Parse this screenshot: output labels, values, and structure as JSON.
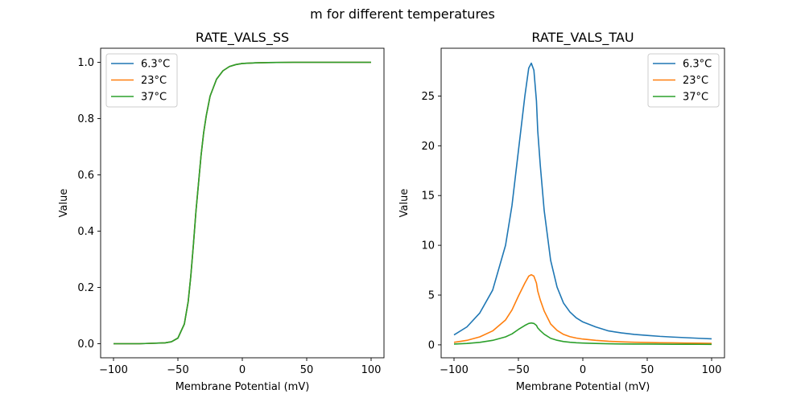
{
  "figure": {
    "title": "m for different temperatures"
  },
  "chart_data": [
    {
      "type": "line",
      "title": "RATE_VALS_SS",
      "xlabel": "Membrane Potential (mV)",
      "ylabel": "Value",
      "xlim": [
        -110,
        110
      ],
      "ylim": [
        -0.05,
        1.05
      ],
      "xticks": [
        -100,
        -50,
        0,
        50,
        100
      ],
      "yticks": [
        0.0,
        0.2,
        0.4,
        0.6,
        0.8,
        1.0
      ],
      "ytick_decimals": 1,
      "grid": false,
      "legend_position": "top-left",
      "series": [
        {
          "name": "6.3°C",
          "color": "#1f77b4",
          "x": [
            -100,
            -80,
            -60,
            -55,
            -50,
            -45,
            -42,
            -40,
            -38,
            -36,
            -35,
            -34,
            -32,
            -30,
            -28,
            -25,
            -20,
            -15,
            -10,
            -5,
            0,
            10,
            20,
            40,
            60,
            80,
            100
          ],
          "y": [
            0.0,
            0.0,
            0.003,
            0.007,
            0.02,
            0.07,
            0.15,
            0.24,
            0.35,
            0.47,
            0.52,
            0.57,
            0.67,
            0.75,
            0.81,
            0.88,
            0.94,
            0.97,
            0.985,
            0.992,
            0.996,
            0.998,
            0.999,
            1.0,
            1.0,
            1.0,
            1.0
          ]
        },
        {
          "name": "23°C",
          "color": "#ff7f0e",
          "x": [
            -100,
            -80,
            -60,
            -55,
            -50,
            -45,
            -42,
            -40,
            -38,
            -36,
            -35,
            -34,
            -32,
            -30,
            -28,
            -25,
            -20,
            -15,
            -10,
            -5,
            0,
            10,
            20,
            40,
            60,
            80,
            100
          ],
          "y": [
            0.0,
            0.0,
            0.003,
            0.007,
            0.02,
            0.07,
            0.15,
            0.24,
            0.35,
            0.47,
            0.52,
            0.57,
            0.67,
            0.75,
            0.81,
            0.88,
            0.94,
            0.97,
            0.985,
            0.992,
            0.996,
            0.998,
            0.999,
            1.0,
            1.0,
            1.0,
            1.0
          ]
        },
        {
          "name": "37°C",
          "color": "#2ca02c",
          "x": [
            -100,
            -80,
            -60,
            -55,
            -50,
            -45,
            -42,
            -40,
            -38,
            -36,
            -35,
            -34,
            -32,
            -30,
            -28,
            -25,
            -20,
            -15,
            -10,
            -5,
            0,
            10,
            20,
            40,
            60,
            80,
            100
          ],
          "y": [
            0.0,
            0.0,
            0.003,
            0.007,
            0.02,
            0.07,
            0.15,
            0.24,
            0.35,
            0.47,
            0.52,
            0.57,
            0.67,
            0.75,
            0.81,
            0.88,
            0.94,
            0.97,
            0.985,
            0.992,
            0.996,
            0.998,
            0.999,
            1.0,
            1.0,
            1.0,
            1.0
          ]
        }
      ]
    },
    {
      "type": "line",
      "title": "RATE_VALS_TAU",
      "xlabel": "Membrane Potential (mV)",
      "ylabel": "Value",
      "xlim": [
        -110,
        110
      ],
      "ylim": [
        -1.3,
        29.8
      ],
      "xticks": [
        -100,
        -50,
        0,
        50,
        100
      ],
      "yticks": [
        0,
        5,
        10,
        15,
        20,
        25
      ],
      "ytick_decimals": 0,
      "grid": false,
      "legend_position": "top-right",
      "series": [
        {
          "name": "6.3°C",
          "color": "#1f77b4",
          "x": [
            -100,
            -90,
            -80,
            -70,
            -60,
            -55,
            -50,
            -45,
            -42,
            -40,
            -38,
            -36,
            -35,
            -33,
            -30,
            -25,
            -20,
            -15,
            -10,
            -5,
            0,
            10,
            20,
            30,
            40,
            50,
            60,
            70,
            80,
            90,
            100
          ],
          "y": [
            1.0,
            1.8,
            3.2,
            5.5,
            10.0,
            14.0,
            19.5,
            25.0,
            27.8,
            28.3,
            27.6,
            24.5,
            21.5,
            18.0,
            13.5,
            8.5,
            5.8,
            4.2,
            3.3,
            2.7,
            2.3,
            1.8,
            1.4,
            1.2,
            1.05,
            0.95,
            0.85,
            0.78,
            0.72,
            0.66,
            0.6
          ]
        },
        {
          "name": "23°C",
          "color": "#ff7f0e",
          "x": [
            -100,
            -90,
            -80,
            -70,
            -60,
            -55,
            -50,
            -45,
            -42,
            -40,
            -38,
            -36,
            -35,
            -33,
            -30,
            -25,
            -20,
            -15,
            -10,
            -5,
            0,
            10,
            20,
            30,
            40,
            50,
            60,
            70,
            80,
            90,
            100
          ],
          "y": [
            0.25,
            0.45,
            0.8,
            1.4,
            2.5,
            3.5,
            4.9,
            6.2,
            6.9,
            7.05,
            6.9,
            6.2,
            5.4,
            4.5,
            3.4,
            2.1,
            1.45,
            1.05,
            0.82,
            0.68,
            0.58,
            0.45,
            0.36,
            0.3,
            0.26,
            0.24,
            0.21,
            0.2,
            0.18,
            0.17,
            0.15
          ]
        },
        {
          "name": "37°C",
          "color": "#2ca02c",
          "x": [
            -100,
            -90,
            -80,
            -70,
            -60,
            -55,
            -50,
            -45,
            -42,
            -40,
            -38,
            -36,
            -35,
            -33,
            -30,
            -25,
            -20,
            -15,
            -10,
            -5,
            0,
            10,
            20,
            30,
            40,
            50,
            60,
            70,
            80,
            90,
            100
          ],
          "y": [
            0.08,
            0.14,
            0.25,
            0.45,
            0.8,
            1.1,
            1.55,
            1.95,
            2.15,
            2.2,
            2.15,
            1.95,
            1.7,
            1.42,
            1.07,
            0.66,
            0.46,
            0.33,
            0.26,
            0.21,
            0.18,
            0.14,
            0.11,
            0.09,
            0.08,
            0.075,
            0.067,
            0.062,
            0.057,
            0.053,
            0.05
          ]
        }
      ]
    }
  ]
}
